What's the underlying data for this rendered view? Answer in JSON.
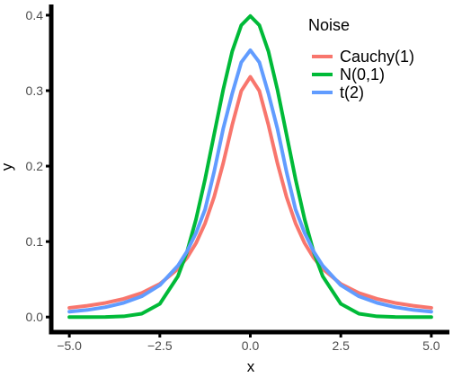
{
  "chart_data": {
    "type": "line",
    "xlabel": "x",
    "ylabel": "y",
    "xlim": [
      -5.0,
      5.0
    ],
    "ylim": [
      0.0,
      0.4
    ],
    "x_ticks": [
      "−5.0",
      "−2.5",
      "0.0",
      "2.5",
      "5.0"
    ],
    "x_tick_values": [
      -5.0,
      -2.5,
      0.0,
      2.5,
      5.0
    ],
    "y_ticks": [
      "0.0",
      "0.1",
      "0.2",
      "0.3",
      "0.4"
    ],
    "y_tick_values": [
      0.0,
      0.1,
      0.2,
      0.3,
      0.4
    ],
    "grid": false,
    "legend": {
      "title": "Noise",
      "placement": "top-right"
    },
    "series": [
      {
        "name": "Cauchy(1)",
        "color": "#f8766d",
        "x": [
          -5.0,
          -4.5,
          -4.0,
          -3.5,
          -3.0,
          -2.5,
          -2.0,
          -1.75,
          -1.5,
          -1.25,
          -1.0,
          -0.75,
          -0.5,
          -0.25,
          0.0,
          0.25,
          0.5,
          0.75,
          1.0,
          1.25,
          1.5,
          1.75,
          2.0,
          2.5,
          3.0,
          3.5,
          4.0,
          4.5,
          5.0
        ],
        "values": [
          0.0122,
          0.0149,
          0.0187,
          0.0241,
          0.0318,
          0.0439,
          0.0637,
          0.0784,
          0.0979,
          0.1242,
          0.1592,
          0.2037,
          0.2546,
          0.2996,
          0.3183,
          0.2996,
          0.2546,
          0.2037,
          0.1592,
          0.1242,
          0.0979,
          0.0784,
          0.0637,
          0.0439,
          0.0318,
          0.0241,
          0.0187,
          0.0149,
          0.0122
        ]
      },
      {
        "name": "N(0,1)",
        "color": "#00ba38",
        "x": [
          -5.0,
          -4.5,
          -4.0,
          -3.5,
          -3.0,
          -2.5,
          -2.0,
          -1.75,
          -1.5,
          -1.25,
          -1.0,
          -0.75,
          -0.5,
          -0.25,
          0.0,
          0.25,
          0.5,
          0.75,
          1.0,
          1.25,
          1.5,
          1.75,
          2.0,
          2.5,
          3.0,
          3.5,
          4.0,
          4.5,
          5.0
        ],
        "values": [
          0.0,
          0.0,
          0.0001,
          0.0009,
          0.0044,
          0.0175,
          0.054,
          0.0863,
          0.1295,
          0.1826,
          0.242,
          0.3011,
          0.3521,
          0.3867,
          0.3989,
          0.3867,
          0.3521,
          0.3011,
          0.242,
          0.1826,
          0.1295,
          0.0863,
          0.054,
          0.0175,
          0.0044,
          0.0009,
          0.0001,
          0.0,
          0.0
        ]
      },
      {
        "name": "t(2)",
        "color": "#619cff",
        "x": [
          -5.0,
          -4.5,
          -4.0,
          -3.5,
          -3.0,
          -2.5,
          -2.0,
          -1.75,
          -1.5,
          -1.25,
          -1.0,
          -0.75,
          -0.5,
          -0.25,
          0.0,
          0.25,
          0.5,
          0.75,
          1.0,
          1.25,
          1.5,
          1.75,
          2.0,
          2.5,
          3.0,
          3.5,
          4.0,
          4.5,
          5.0
        ],
        "values": [
          0.0071,
          0.0094,
          0.0131,
          0.0188,
          0.0274,
          0.0422,
          0.068,
          0.0869,
          0.1114,
          0.1425,
          0.1925,
          0.2494,
          0.2962,
          0.3375,
          0.3536,
          0.3375,
          0.2962,
          0.2494,
          0.1925,
          0.1425,
          0.1114,
          0.0869,
          0.068,
          0.0422,
          0.0274,
          0.0188,
          0.0131,
          0.0094,
          0.0071
        ]
      }
    ]
  }
}
